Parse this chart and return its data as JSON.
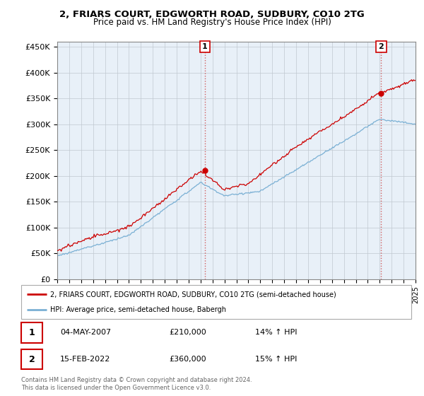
{
  "title": "2, FRIARS COURT, EDGWORTH ROAD, SUDBURY, CO10 2TG",
  "subtitle": "Price paid vs. HM Land Registry's House Price Index (HPI)",
  "ylim": [
    0,
    460000
  ],
  "yticks": [
    0,
    50000,
    100000,
    150000,
    200000,
    250000,
    300000,
    350000,
    400000,
    450000
  ],
  "ytick_labels": [
    "£0",
    "£50K",
    "£100K",
    "£150K",
    "£200K",
    "£250K",
    "£300K",
    "£350K",
    "£400K",
    "£450K"
  ],
  "xlim_start": 1995,
  "xlim_end": 2025,
  "legend_line1": "2, FRIARS COURT, EDGWORTH ROAD, SUDBURY, CO10 2TG (semi-detached house)",
  "legend_line2": "HPI: Average price, semi-detached house, Babergh",
  "annotation1_label": "1",
  "annotation1_date": "04-MAY-2007",
  "annotation1_price": "£210,000",
  "annotation1_hpi": "14% ↑ HPI",
  "annotation2_label": "2",
  "annotation2_date": "15-FEB-2022",
  "annotation2_price": "£360,000",
  "annotation2_hpi": "15% ↑ HPI",
  "footer": "Contains HM Land Registry data © Crown copyright and database right 2024.\nThis data is licensed under the Open Government Licence v3.0.",
  "line_color_red": "#cc0000",
  "line_color_blue": "#7ab0d4",
  "background_color": "#e8f0f8",
  "grid_color": "#c0c8d0",
  "sale1_year": 2007.37,
  "sale1_price": 210000,
  "sale2_year": 2022.12,
  "sale2_price": 360000
}
